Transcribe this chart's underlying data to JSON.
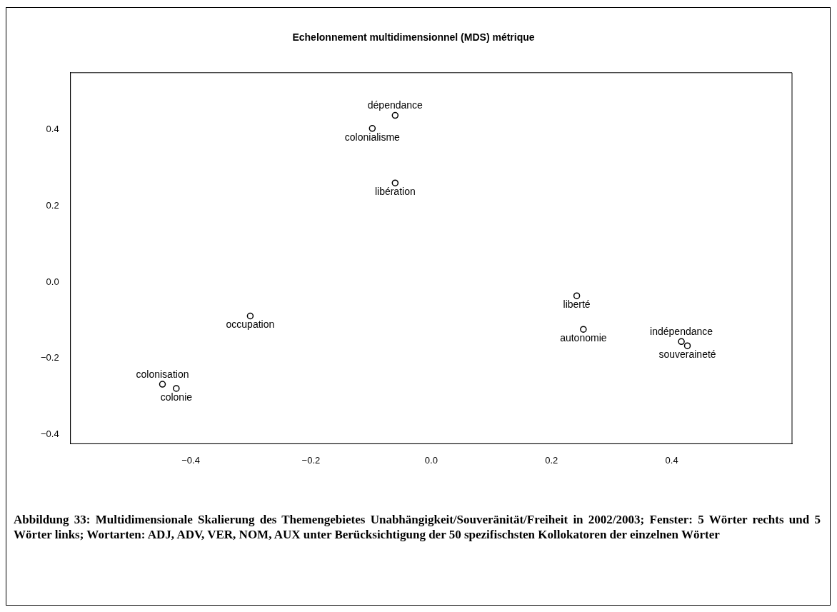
{
  "chart_data": {
    "type": "scatter",
    "title": "Echelonnement multidimensionnel (MDS) métrique",
    "series": [
      {
        "color": "#000000",
        "x": [
          -0.06,
          -0.098,
          -0.06,
          -0.301,
          -0.447,
          -0.424,
          0.242,
          0.253,
          0.416,
          0.426
        ],
        "values": [
          0.437,
          0.403,
          0.26,
          -0.089,
          -0.268,
          -0.279,
          -0.036,
          -0.124,
          -0.156,
          -0.167
        ],
        "value_labels": [
          "dépendance",
          "colonialisme",
          "libération",
          "occupation",
          "colonisation",
          "colonie",
          "liberté",
          "autonomie",
          "indépendance",
          "souveraineté"
        ]
      }
    ],
    "marker": "circle",
    "grid": false,
    "legend": false,
    "xlim": [
      -0.6,
      0.6
    ],
    "ylim": [
      -0.424,
      0.549
    ],
    "xticks": [
      {
        "value": -0.4,
        "label": "−0.4"
      },
      {
        "value": -0.2,
        "label": "−0.2"
      },
      {
        "value": 0,
        "label": "0.0"
      },
      {
        "value": 0.2,
        "label": "0.2"
      },
      {
        "value": 0.4,
        "label": "0.4"
      }
    ],
    "yticks": [
      {
        "value": -0.4,
        "label": "−0.4"
      },
      {
        "value": -0.2,
        "label": "−0.2"
      },
      {
        "value": 0,
        "label": "0.0"
      },
      {
        "value": 0.2,
        "label": "0.2"
      },
      {
        "value": 0.4,
        "label": "0.4"
      }
    ],
    "annotations": [
      "Abbildung 33: Multidimensionale Skalierung des Themengebietes Unabhängigkeit/Souveränität/Freiheit in 2002/2003; Fenster: 5 Wörter rechts und 5 Wörter links; Wortarten: ADJ, ADV, VER, NOM, AUX unter Berücksichtigung der 50 spezifischsten Kollokatoren der einzelnen Wörter"
    ]
  }
}
